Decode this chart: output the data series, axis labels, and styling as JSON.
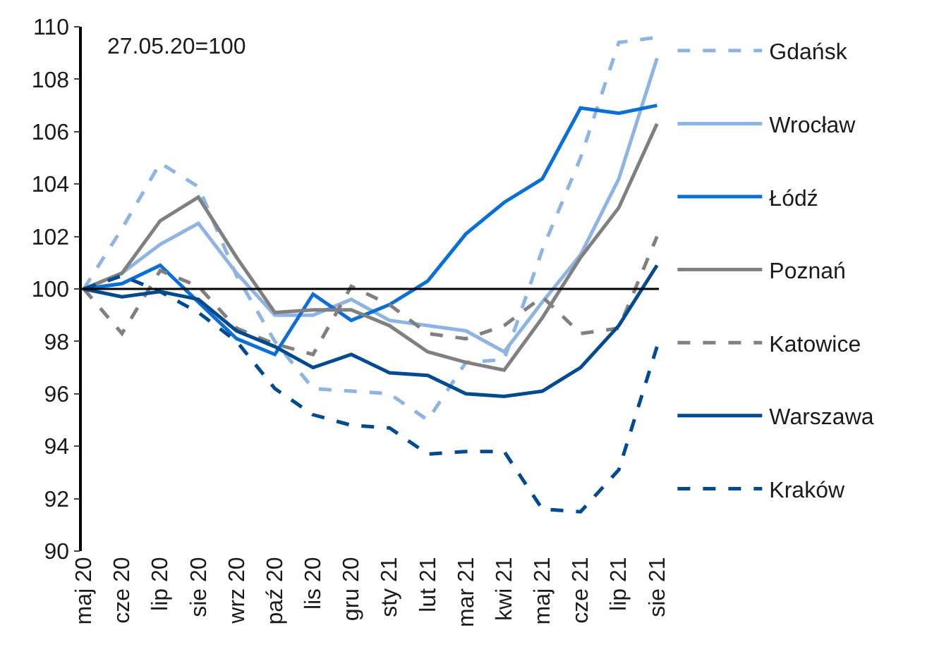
{
  "chart_data": {
    "type": "line",
    "categories": [
      "maj 20",
      "cze 20",
      "lip 20",
      "sie 20",
      "wrz 20",
      "paź 20",
      "lis 20",
      "gru 20",
      "sty 21",
      "lut 21",
      "mar 21",
      "kwi 21",
      "maj 21",
      "cze 21",
      "lip 21",
      "sie 21"
    ],
    "series": [
      {
        "name": "Gdańsk",
        "color": "#8db4e2",
        "line_style": "dashed",
        "values": [
          100,
          102.3,
          104.8,
          103.9,
          100.5,
          98.0,
          96.2,
          96.1,
          96.0,
          95.0,
          97.2,
          97.3,
          101.5,
          105.0,
          109.4,
          109.6
        ]
      },
      {
        "name": "Wrocław",
        "color": "#8db4e2",
        "line_style": "solid",
        "values": [
          100,
          100.6,
          101.7,
          102.5,
          100.6,
          99.0,
          99.0,
          99.6,
          98.8,
          98.6,
          98.4,
          97.6,
          99.5,
          101.3,
          104.2,
          108.8
        ]
      },
      {
        "name": "Łódź",
        "color": "#0a6fd6",
        "line_style": "solid",
        "values": [
          100,
          100.2,
          100.9,
          99.5,
          98.1,
          97.5,
          99.8,
          98.8,
          99.4,
          100.3,
          102.1,
          103.3,
          104.2,
          106.9,
          106.7,
          107.0
        ]
      },
      {
        "name": "Poznań",
        "color": "#808080",
        "line_style": "solid",
        "values": [
          100,
          100.6,
          102.6,
          103.5,
          101.2,
          99.1,
          99.2,
          99.2,
          98.6,
          97.6,
          97.2,
          96.9,
          98.9,
          101.2,
          103.1,
          106.3
        ]
      },
      {
        "name": "Katowice",
        "color": "#808080",
        "line_style": "dashed",
        "values": [
          100,
          98.3,
          100.7,
          100.1,
          98.5,
          97.9,
          97.5,
          100.1,
          99.4,
          98.3,
          98.1,
          98.6,
          99.7,
          98.3,
          98.5,
          102.0
        ]
      },
      {
        "name": "Warszawa",
        "color": "#004a8f",
        "line_style": "solid",
        "values": [
          100,
          99.7,
          99.9,
          99.6,
          98.4,
          97.8,
          97.0,
          97.5,
          96.8,
          96.7,
          96.0,
          95.9,
          96.1,
          97.0,
          98.6,
          100.9
        ]
      },
      {
        "name": "Kraków",
        "color": "#004a8f",
        "line_style": "dashed",
        "values": [
          100,
          100.5,
          99.9,
          99.1,
          98.0,
          96.2,
          95.2,
          94.8,
          94.7,
          93.7,
          93.8,
          93.8,
          91.6,
          91.5,
          93.1,
          97.8
        ]
      }
    ],
    "ylim": [
      90,
      110
    ],
    "yticks": [
      90,
      92,
      94,
      96,
      98,
      100,
      102,
      104,
      106,
      108,
      110
    ],
    "ref_lines": [
      {
        "axis": "y",
        "value": 100,
        "color": "#000000"
      }
    ],
    "annotations": [
      "27.05.20=100"
    ],
    "grid": false,
    "legend": "right",
    "marker": "none"
  }
}
